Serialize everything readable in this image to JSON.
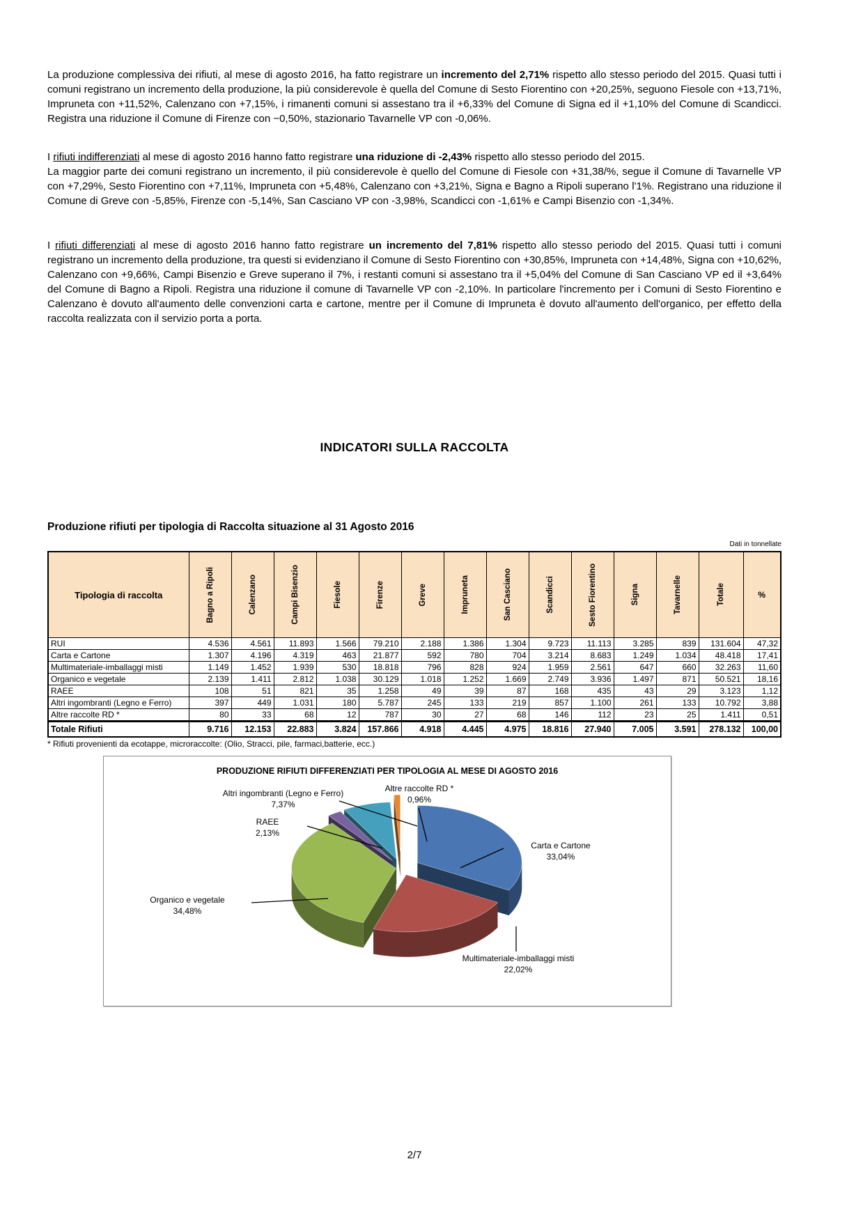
{
  "page": {
    "number": "2/7"
  },
  "paragraphs": {
    "p1": [
      {
        "t": "La produzione complessiva dei rifiuti, al mese di agosto 2016, ha fatto registrare un "
      },
      {
        "t": "incremento del 2,71%",
        "b": true
      },
      {
        "t": " rispetto allo stesso periodo del 2015. Quasi tutti i comuni registrano un incremento della produzione, la più considerevole è quella del Comune di Sesto Fiorentino con +20,25%, seguono Fiesole con +13,71%, Impruneta con +11,52%, Calenzano con +7,15%, i rimanenti comuni si assestano tra il +6,33% del Comune di Signa ed il +1,10% del Comune di Scandicci. Registra una riduzione il Comune di Firenze con −0,50%, stazionario Tavarnelle VP con -0,06%."
      }
    ],
    "p2": [
      {
        "t": "I "
      },
      {
        "t": "rifiuti indifferenziati",
        "u": true
      },
      {
        "t": " al mese di agosto 2016 hanno fatto registrare "
      },
      {
        "t": "una riduzione di -2,43%",
        "b": true
      },
      {
        "t": " rispetto allo stesso periodo del 2015."
      },
      {
        "br": true
      },
      {
        "t": "La maggior parte dei comuni registrano un incremento, il più considerevole è quello del Comune di Fiesole con +31,38/%, segue il Comune di Tavarnelle VP con +7,29%, Sesto Fiorentino con +7,11%, Impruneta con +5,48%, Calenzano con +3,21%, Signa e Bagno a Ripoli superano l'1%. Registrano una riduzione il Comune di Greve con -5,85%, Firenze con -5,14%, San Casciano VP con -3,98%, Scandicci con -1,61% e Campi Bisenzio con -1,34%."
      }
    ],
    "p3": [
      {
        "t": "I "
      },
      {
        "t": "rifiuti differenziati",
        "u": true
      },
      {
        "t": " al mese di agosto 2016 hanno fatto registrare "
      },
      {
        "t": "un incremento del 7,81%",
        "b": true
      },
      {
        "t": " rispetto allo stesso periodo del 2015. Quasi tutti i comuni registrano un incremento della produzione, tra questi si evidenziano il Comune di Sesto Fiorentino con +30,85%, Impruneta con +14,48%, Signa con +10,62%, Calenzano con +9,66%, Campi Bisenzio e Greve superano il 7%, i restanti comuni si assestano tra il +5,04% del Comune di San Casciano VP ed il +3,64% del Comune di Bagno a Ripoli.  Registra una riduzione il comune di Tavarnelle VP con -2,10%. In particolare l'incremento per i Comuni di Sesto Fiorentino e Calenzano è dovuto all'aumento delle convenzioni carta e cartone, mentre per il Comune di Impruneta è dovuto all'aumento dell'organico, per effetto della raccolta realizzata con il servizio porta a porta."
      }
    ]
  },
  "section_heading": "INDICATORI SULLA RACCOLTA",
  "table": {
    "title": "Produzione rifiuti per tipologia di Raccolta situazione al 31 Agosto 2016",
    "units_note": "Dati in tonnellate",
    "corner_header": "Tipologia di raccolta",
    "columns": [
      "Bagno a Ripoli",
      "Calenzano",
      "Campi Bisenzio",
      "Fiesole",
      "Firenze",
      "Greve",
      "Impruneta",
      "San Casciano",
      "Scandicci",
      "Sesto Fiorentino",
      "Signa",
      "Tavarnelle",
      "Totale",
      "%"
    ],
    "rows": [
      {
        "label": "RUI",
        "values": [
          "4.536",
          "4.561",
          "11.893",
          "1.566",
          "79.210",
          "2.188",
          "1.386",
          "1.304",
          "9.723",
          "11.113",
          "3.285",
          "839",
          "131.604",
          "47,32"
        ]
      },
      {
        "label": "Carta e Cartone",
        "values": [
          "1.307",
          "4.196",
          "4.319",
          "463",
          "21.877",
          "592",
          "780",
          "704",
          "3.214",
          "8.683",
          "1.249",
          "1.034",
          "48.418",
          "17,41"
        ]
      },
      {
        "label": "Multimateriale-imballaggi misti",
        "values": [
          "1.149",
          "1.452",
          "1.939",
          "530",
          "18.818",
          "796",
          "828",
          "924",
          "1.959",
          "2.561",
          "647",
          "660",
          "32.263",
          "11,60"
        ]
      },
      {
        "label": "Organico e vegetale",
        "values": [
          "2.139",
          "1.411",
          "2.812",
          "1.038",
          "30.129",
          "1.018",
          "1.252",
          "1.669",
          "2.749",
          "3.936",
          "1.497",
          "871",
          "50.521",
          "18,16"
        ]
      },
      {
        "label": "RAEE",
        "values": [
          "108",
          "51",
          "821",
          "35",
          "1.258",
          "49",
          "39",
          "87",
          "168",
          "435",
          "43",
          "29",
          "3.123",
          "1,12"
        ]
      },
      {
        "label": "Altri ingombranti (Legno e Ferro)",
        "values": [
          "397",
          "449",
          "1.031",
          "180",
          "5.787",
          "245",
          "133",
          "219",
          "857",
          "1.100",
          "261",
          "133",
          "10.792",
          "3,88"
        ]
      },
      {
        "label": "Altre raccolte RD *",
        "values": [
          "80",
          "33",
          "68",
          "12",
          "787",
          "30",
          "27",
          "68",
          "146",
          "112",
          "23",
          "25",
          "1.411",
          "0,51"
        ]
      }
    ],
    "total_row": {
      "label": "Totale Rifiuti",
      "values": [
        "9.716",
        "12.153",
        "22.883",
        "3.824",
        "157.866",
        "4.918",
        "4.445",
        "4.975",
        "18.816",
        "27.940",
        "7.005",
        "3.591",
        "278.132",
        "100,00"
      ]
    },
    "footnote": "* Rifiuti provenienti da ecotappe, microraccolte: (Olio, Stracci, pile, farmaci,batterie, ecc.)"
  },
  "chart_data": {
    "type": "pie",
    "title": "PRODUZIONE RIFIUTI DIFFERENZIATI PER TIPOLOGIA AL MESE DI AGOSTO 2016",
    "style": "3d-exploded",
    "legend_position": "none",
    "slices": [
      {
        "label": "Carta e Cartone",
        "value": 33.04,
        "pct_label": "33,04%",
        "color": "#4a76b4"
      },
      {
        "label": "Multimateriale-imballaggi misti",
        "value": 22.02,
        "pct_label": "22,02%",
        "color": "#b0504a"
      },
      {
        "label": "Organico e vegetale",
        "value": 34.48,
        "pct_label": "34,48%",
        "color": "#9ab952"
      },
      {
        "label": "RAEE",
        "value": 2.13,
        "pct_label": "2,13%",
        "color": "#7a62a0"
      },
      {
        "label": "Altri ingombranti (Legno e Ferro)",
        "value": 7.37,
        "pct_label": "7,37%",
        "color": "#45a0be"
      },
      {
        "label": "Altre raccolte RD *",
        "value": 0.96,
        "pct_label": "0,96%",
        "color": "#e6882f"
      }
    ]
  }
}
